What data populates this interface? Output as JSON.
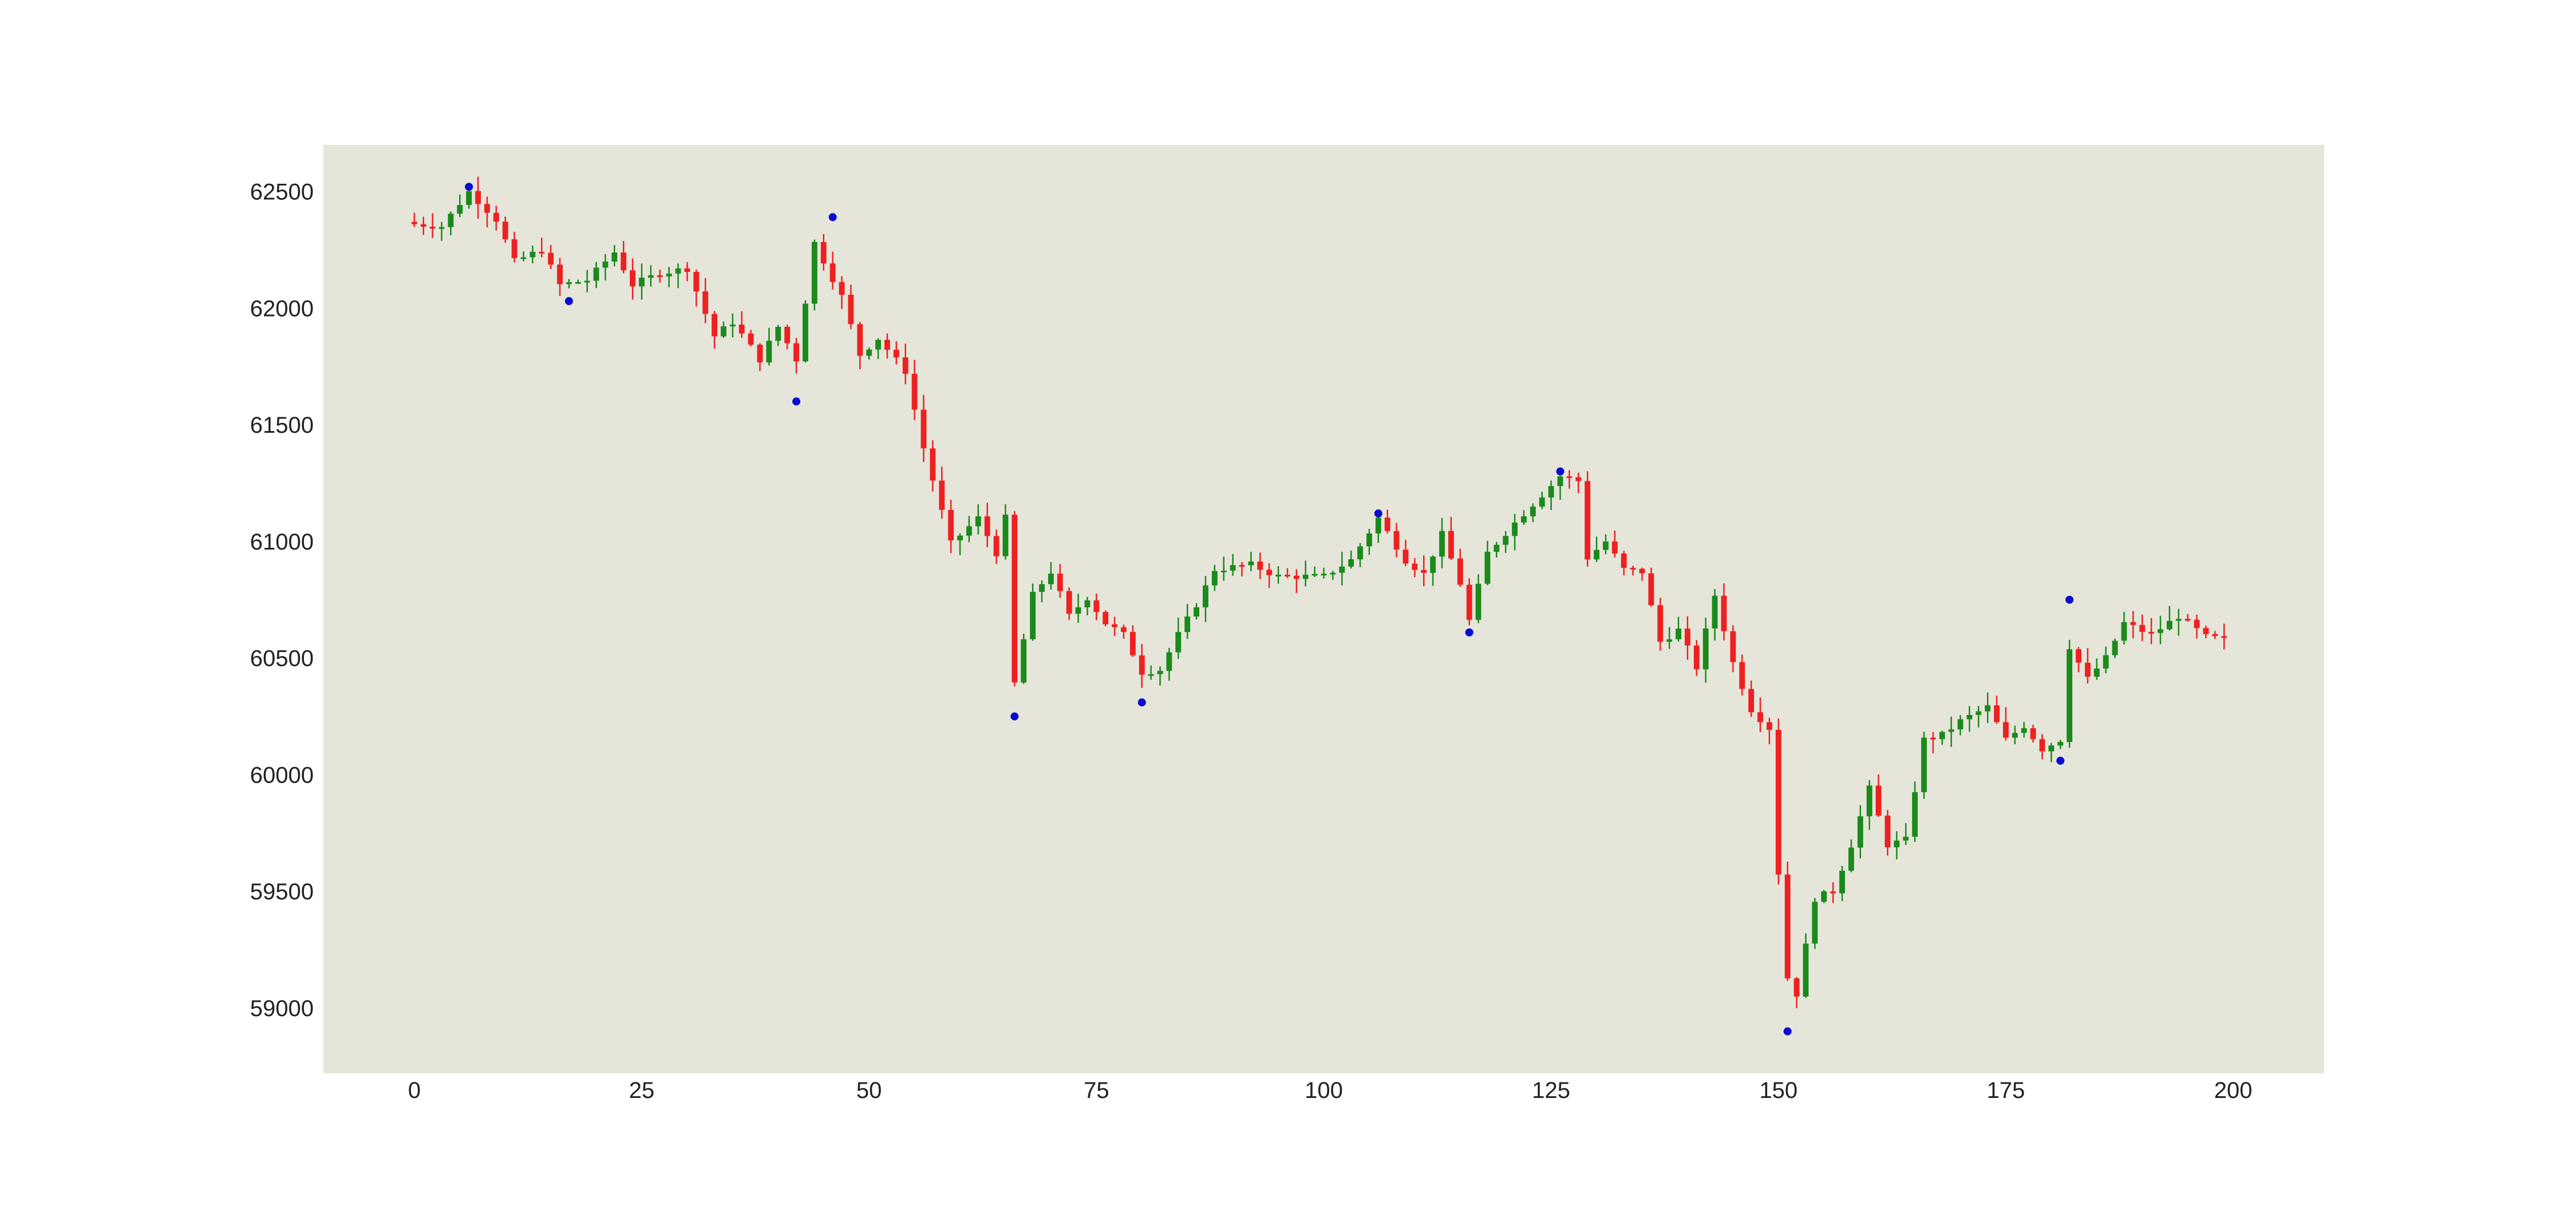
{
  "chart_data": {
    "type": "candlestick",
    "title": "",
    "xlabel": "",
    "ylabel": "",
    "xlim": [
      -10,
      210
    ],
    "ylim": [
      58720,
      62700
    ],
    "x_ticks": [
      0,
      25,
      50,
      75,
      100,
      125,
      150,
      175,
      200
    ],
    "y_ticks": [
      59000,
      59500,
      60000,
      60500,
      61000,
      61500,
      62000,
      62500
    ],
    "grid": false,
    "legend": "none",
    "colors": {
      "background": "#e5e5da",
      "up": "#1a8a1a",
      "down": "#ee2020",
      "marker": "#0a0ad0"
    },
    "anchor_closes": [
      [
        0,
        62360
      ],
      [
        3,
        62350
      ],
      [
        6,
        62500
      ],
      [
        9,
        62380
      ],
      [
        11,
        62200
      ],
      [
        14,
        62250
      ],
      [
        16,
        62100
      ],
      [
        19,
        62120
      ],
      [
        22,
        62240
      ],
      [
        24,
        62100
      ],
      [
        27,
        62150
      ],
      [
        30,
        62170
      ],
      [
        33,
        61880
      ],
      [
        35,
        61940
      ],
      [
        38,
        61780
      ],
      [
        40,
        61920
      ],
      [
        42,
        61780
      ],
      [
        44,
        62280
      ],
      [
        47,
        62050
      ],
      [
        49,
        61800
      ],
      [
        51,
        61870
      ],
      [
        54,
        61730
      ],
      [
        56,
        61400
      ],
      [
        59,
        60990
      ],
      [
        62,
        61100
      ],
      [
        64,
        60950
      ],
      [
        65,
        61100
      ],
      [
        66,
        60390
      ],
      [
        68,
        60770
      ],
      [
        70,
        60870
      ],
      [
        72,
        60680
      ],
      [
        74,
        60760
      ],
      [
        76,
        60650
      ],
      [
        78,
        60600
      ],
      [
        80,
        60440
      ],
      [
        82,
        60450
      ],
      [
        84,
        60600
      ],
      [
        86,
        60730
      ],
      [
        88,
        60880
      ],
      [
        92,
        60900
      ],
      [
        95,
        60850
      ],
      [
        100,
        60850
      ],
      [
        103,
        60920
      ],
      [
        106,
        61100
      ],
      [
        109,
        60920
      ],
      [
        111,
        60860
      ],
      [
        113,
        61030
      ],
      [
        115,
        60820
      ],
      [
        116,
        60660
      ],
      [
        118,
        60950
      ],
      [
        121,
        61080
      ],
      [
        124,
        61200
      ],
      [
        126,
        61280
      ],
      [
        128,
        61260
      ],
      [
        129,
        60930
      ],
      [
        131,
        61000
      ],
      [
        133,
        60880
      ],
      [
        135,
        60870
      ],
      [
        137,
        60570
      ],
      [
        139,
        60620
      ],
      [
        141,
        60460
      ],
      [
        143,
        60770
      ],
      [
        145,
        60480
      ],
      [
        147,
        60280
      ],
      [
        149,
        60200
      ],
      [
        150,
        59580
      ],
      [
        151,
        59130
      ],
      [
        152,
        59060
      ],
      [
        154,
        59470
      ],
      [
        156,
        59500
      ],
      [
        158,
        59700
      ],
      [
        160,
        59940
      ],
      [
        162,
        59700
      ],
      [
        164,
        59720
      ],
      [
        166,
        60150
      ],
      [
        168,
        60170
      ],
      [
        170,
        60230
      ],
      [
        173,
        60290
      ],
      [
        175,
        60150
      ],
      [
        177,
        60210
      ],
      [
        179,
        60110
      ],
      [
        181,
        60150
      ],
      [
        182,
        60550
      ],
      [
        184,
        60410
      ],
      [
        186,
        60500
      ],
      [
        188,
        60650
      ],
      [
        191,
        60600
      ],
      [
        194,
        60680
      ],
      [
        197,
        60590
      ],
      [
        199,
        60580
      ]
    ],
    "marked_points": [
      {
        "x": 6,
        "y": 62520
      },
      {
        "x": 17,
        "y": 62030
      },
      {
        "x": 42,
        "y": 61600
      },
      {
        "x": 46,
        "y": 62390
      },
      {
        "x": 66,
        "y": 60250
      },
      {
        "x": 80,
        "y": 60310
      },
      {
        "x": 106,
        "y": 61120
      },
      {
        "x": 116,
        "y": 60610
      },
      {
        "x": 126,
        "y": 61300
      },
      {
        "x": 151,
        "y": 58900
      },
      {
        "x": 181,
        "y": 60060
      },
      {
        "x": 182,
        "y": 60750
      }
    ]
  }
}
